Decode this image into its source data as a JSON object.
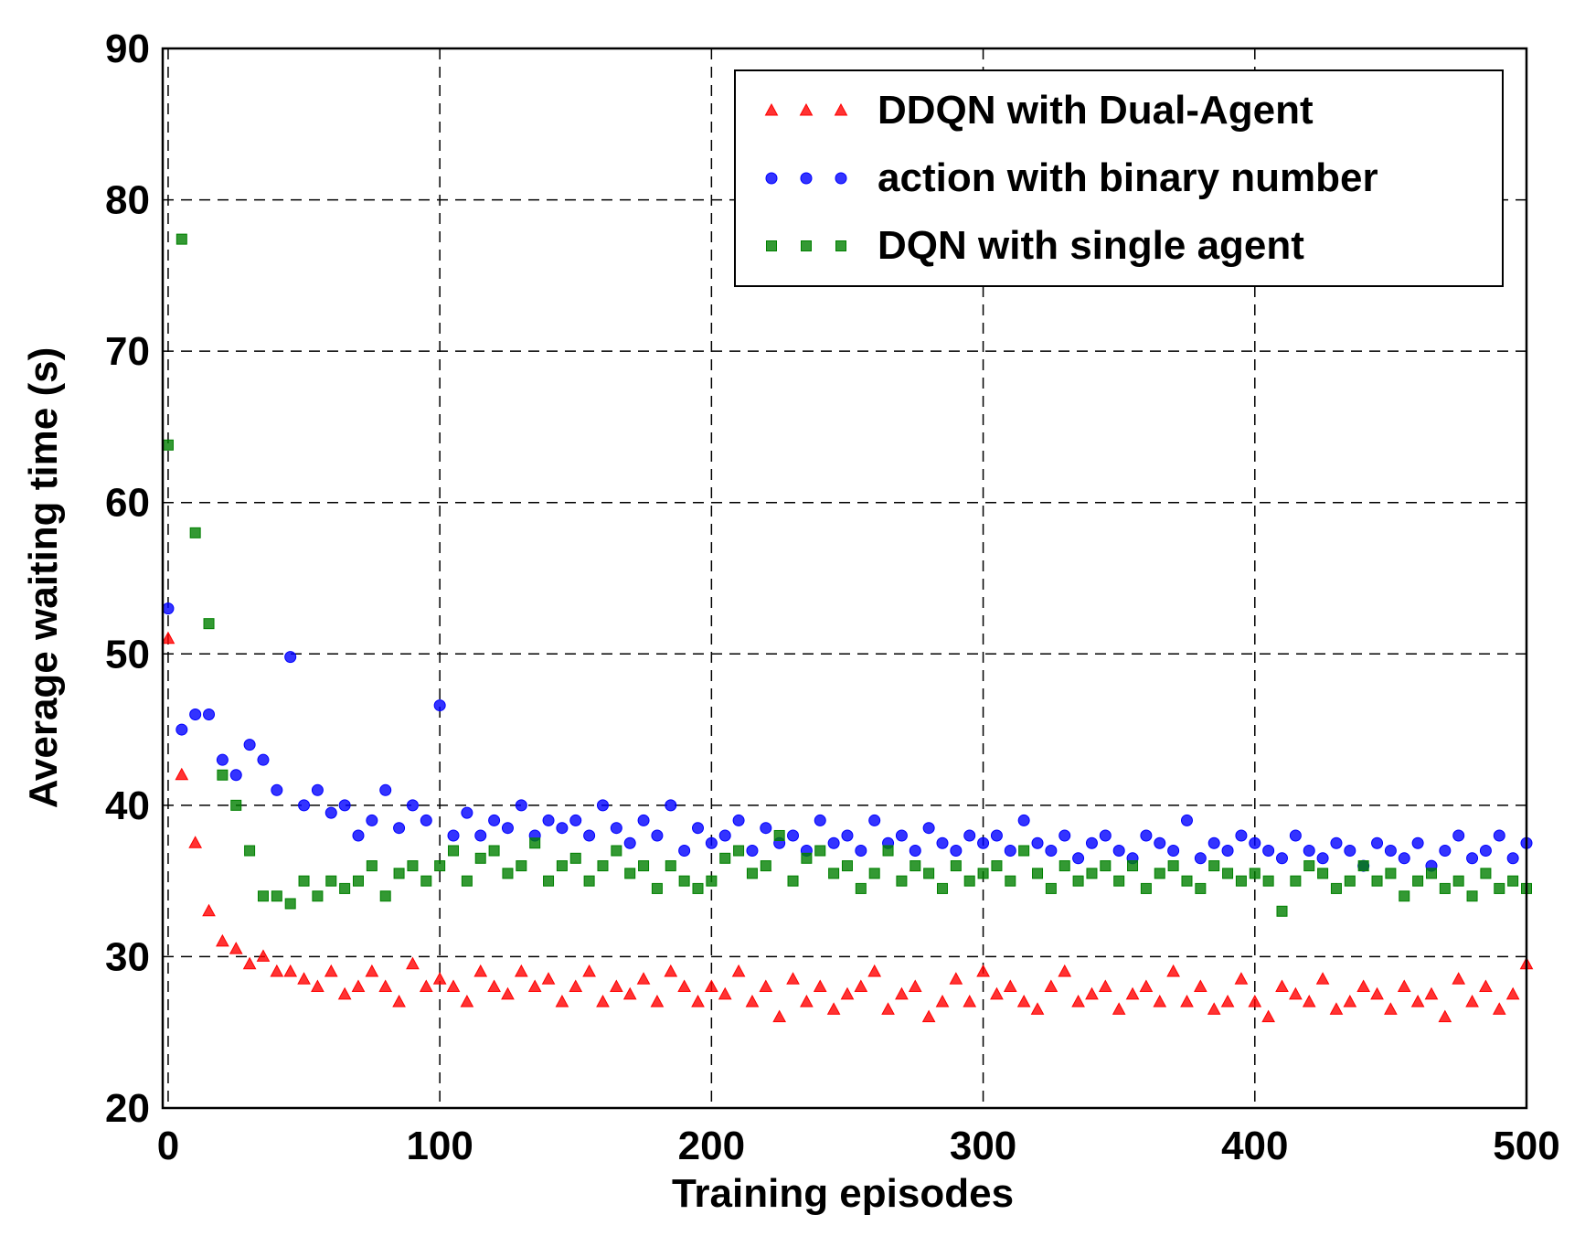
{
  "chart_data": {
    "type": "scatter",
    "xlabel": "Training episodes",
    "ylabel": "Average waiting time (s)",
    "xlim": [
      -2,
      500
    ],
    "ylim": [
      20,
      90
    ],
    "xticks": [
      0,
      100,
      200,
      300,
      400,
      500
    ],
    "yticks": [
      20,
      30,
      40,
      50,
      60,
      70,
      80,
      90
    ],
    "grid": true,
    "legend": "upper right",
    "x": [
      0,
      5,
      10,
      15,
      20,
      25,
      30,
      35,
      40,
      45,
      50,
      55,
      60,
      65,
      70,
      75,
      80,
      85,
      90,
      95,
      100,
      105,
      110,
      115,
      120,
      125,
      130,
      135,
      140,
      145,
      150,
      155,
      160,
      165,
      170,
      175,
      180,
      185,
      190,
      195,
      200,
      205,
      210,
      215,
      220,
      225,
      230,
      235,
      240,
      245,
      250,
      255,
      260,
      265,
      270,
      275,
      280,
      285,
      290,
      295,
      300,
      305,
      310,
      315,
      320,
      325,
      330,
      335,
      340,
      345,
      350,
      355,
      360,
      365,
      370,
      375,
      380,
      385,
      390,
      395,
      400,
      405,
      410,
      415,
      420,
      425,
      430,
      435,
      440,
      445,
      450,
      455,
      460,
      465,
      470,
      475,
      480,
      485,
      490,
      495,
      500
    ],
    "series": [
      {
        "name": "DDQN with Dual-Agent",
        "color": "#ff0000",
        "marker": "triangle",
        "values": [
          51,
          42,
          37.5,
          33,
          31,
          30.5,
          29.5,
          30,
          29,
          29,
          28.5,
          28,
          29,
          27.5,
          28,
          29,
          28,
          27,
          29.5,
          28,
          28.5,
          28,
          27,
          29,
          28,
          27.5,
          29,
          28,
          28.5,
          27,
          28,
          29,
          27,
          28,
          27.5,
          28.5,
          27,
          29,
          28,
          27,
          28,
          27.5,
          29,
          27,
          28,
          26,
          28.5,
          27,
          28,
          26.5,
          27.5,
          28,
          29,
          26.5,
          27.5,
          28,
          26,
          27,
          28.5,
          27,
          29,
          27.5,
          28,
          27,
          26.5,
          28,
          29,
          27,
          27.5,
          28,
          26.5,
          27.5,
          28,
          27,
          29,
          27,
          28,
          26.5,
          27,
          28.5,
          27,
          26,
          28,
          27.5,
          27,
          28.5,
          26.5,
          27,
          28,
          27.5,
          26.5,
          28,
          27,
          27.5,
          26,
          28.5,
          27,
          28,
          26.5,
          27.5,
          29.5
        ]
      },
      {
        "name": "action with binary number",
        "color": "#0000ff",
        "marker": "circle",
        "values": [
          53,
          45,
          46,
          46,
          43,
          42,
          44,
          43,
          41,
          49.8,
          40,
          41,
          39.5,
          40,
          38,
          39,
          41,
          38.5,
          40,
          39,
          46.6,
          38,
          39.5,
          38,
          39,
          38.5,
          40,
          38,
          39,
          38.5,
          39,
          38,
          40,
          38.5,
          37.5,
          39,
          38,
          40,
          37,
          38.5,
          37.5,
          38,
          39,
          37,
          38.5,
          37.5,
          38,
          37,
          39,
          37.5,
          38,
          37,
          39,
          37.5,
          38,
          37,
          38.5,
          37.5,
          37,
          38,
          37.5,
          38,
          37,
          39,
          37.5,
          37,
          38,
          36.5,
          37.5,
          38,
          37,
          36.5,
          38,
          37.5,
          37,
          39,
          36.5,
          37.5,
          37,
          38,
          37.5,
          37,
          36.5,
          38,
          37,
          36.5,
          37.5,
          37,
          36,
          37.5,
          37,
          36.5,
          37.5,
          36,
          37,
          38,
          36.5,
          37,
          38,
          36.5,
          37.5
        ]
      },
      {
        "name": "DQN with single agent",
        "color": "#008000",
        "marker": "square",
        "values": [
          63.8,
          77.4,
          58,
          52,
          42,
          40,
          37,
          34,
          34,
          33.5,
          35,
          34,
          35,
          34.5,
          35,
          36,
          34,
          35.5,
          36,
          35,
          36,
          37,
          35,
          36.5,
          37,
          35.5,
          36,
          37.5,
          35,
          36,
          36.5,
          35,
          36,
          37,
          35.5,
          36,
          34.5,
          36,
          35,
          34.5,
          35,
          36.5,
          37,
          35.5,
          36,
          38,
          35,
          36.5,
          37,
          35.5,
          36,
          34.5,
          35.5,
          37,
          35,
          36,
          35.5,
          34.5,
          36,
          35,
          35.5,
          36,
          35,
          37,
          35.5,
          34.5,
          36,
          35,
          35.5,
          36,
          35,
          36,
          34.5,
          35.5,
          36,
          35,
          34.5,
          36,
          35.5,
          35,
          35.5,
          35,
          33,
          35,
          36,
          35.5,
          34.5,
          35,
          36,
          35,
          35.5,
          34,
          35,
          35.5,
          34.5,
          35,
          34,
          35.5,
          34.5,
          35,
          34.5
        ]
      }
    ]
  }
}
